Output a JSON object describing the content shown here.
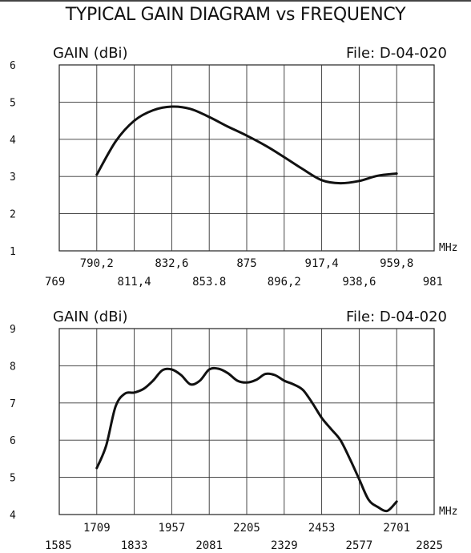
{
  "title": "TYPICAL GAIN DIAGRAM vs FREQUENCY",
  "chart_data": [
    {
      "type": "line",
      "ylabel": "GAIN (dBi)",
      "file_label": "File:  D-04-020",
      "unit_label": "MHz",
      "ylim": [
        1,
        6
      ],
      "xlim": [
        769,
        981
      ],
      "yticks": [
        "1",
        "2",
        "3",
        "4",
        "5",
        "6"
      ],
      "xticks_upper": [
        "790,2",
        "832,6",
        "875",
        "917,4",
        "959,8"
      ],
      "xticks_lower": [
        "769",
        "811,4",
        "853.8",
        "896,2",
        "938,6",
        "981"
      ],
      "grid": true,
      "series": [
        {
          "x": [
            790.2,
            801,
            811.4,
            822,
            832.6,
            843,
            853.8,
            864,
            875,
            886,
            896.2,
            906,
            917.4,
            928,
            938.6,
            949,
            959.8
          ],
          "y": [
            3.05,
            3.95,
            4.5,
            4.78,
            4.88,
            4.82,
            4.6,
            4.35,
            4.1,
            3.82,
            3.52,
            3.22,
            2.9,
            2.82,
            2.88,
            3.02,
            3.08
          ]
        }
      ]
    },
    {
      "type": "line",
      "ylabel": "GAIN (dBi)",
      "file_label": "File:  D-04-020",
      "unit_label": "MHz",
      "ylim": [
        4,
        9
      ],
      "xlim": [
        1585,
        2825
      ],
      "yticks": [
        "4",
        "5",
        "6",
        "7",
        "8",
        "9"
      ],
      "xticks_upper": [
        "1709",
        "1957",
        "2205",
        "2453",
        "2701"
      ],
      "xticks_lower": [
        "1585",
        "1833",
        "2081",
        "2329",
        "2577",
        "2825"
      ],
      "grid": true,
      "series": [
        {
          "x": [
            1709,
            1740,
            1771,
            1802,
            1833,
            1864,
            1895,
            1926,
            1957,
            1988,
            2019,
            2050,
            2081,
            2112,
            2143,
            2174,
            2205,
            2236,
            2267,
            2298,
            2329,
            2360,
            2391,
            2422,
            2453,
            2484,
            2515,
            2546,
            2577,
            2608,
            2639,
            2670,
            2701
          ],
          "y": [
            5.25,
            5.85,
            6.9,
            7.25,
            7.28,
            7.38,
            7.6,
            7.88,
            7.9,
            7.75,
            7.5,
            7.6,
            7.9,
            7.92,
            7.8,
            7.6,
            7.55,
            7.62,
            7.78,
            7.75,
            7.6,
            7.5,
            7.35,
            7.0,
            6.6,
            6.3,
            6.0,
            5.5,
            4.95,
            4.4,
            4.2,
            4.1,
            4.35
          ]
        }
      ]
    }
  ]
}
